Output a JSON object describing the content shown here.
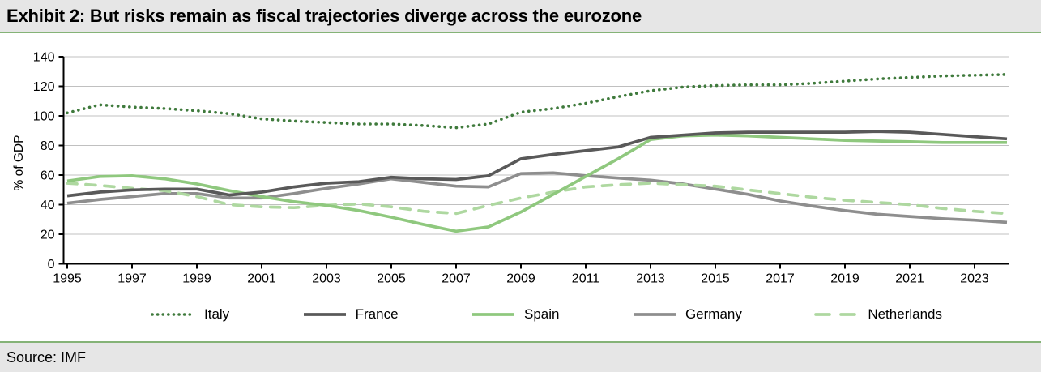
{
  "header": {
    "title": "Exhibit 2: But risks remain as fiscal trajectories diverge across the eurozone"
  },
  "footer": {
    "source": "Source: IMF"
  },
  "colors": {
    "accent_green": "#85b377",
    "panel_bg": "#e6e6e6",
    "grid": "#c0c0c0",
    "axis": "#000000"
  },
  "chart_data": {
    "type": "line",
    "title": "",
    "xlabel": "",
    "ylabel": "% of GDP",
    "ylim": [
      0,
      140
    ],
    "yticks": [
      0,
      20,
      40,
      60,
      80,
      100,
      120,
      140
    ],
    "xticks": [
      1995,
      1997,
      1999,
      2001,
      2003,
      2005,
      2007,
      2009,
      2011,
      2013,
      2015,
      2017,
      2019,
      2021,
      2023
    ],
    "grid": "horizontal",
    "legend_position": "bottom",
    "x": [
      1995,
      1996,
      1997,
      1998,
      1999,
      2000,
      2001,
      2002,
      2003,
      2004,
      2005,
      2006,
      2007,
      2008,
      2009,
      2010,
      2011,
      2012,
      2013,
      2014,
      2015,
      2016,
      2017,
      2018,
      2019,
      2020,
      2021,
      2022,
      2023,
      2024
    ],
    "series": [
      {
        "name": "Italy",
        "color": "#3f7a3c",
        "style": "dotted",
        "zorder": 5,
        "values": [
          102,
          107.5,
          106,
          105,
          103.5,
          101.5,
          98,
          96.5,
          95.5,
          94.5,
          94.5,
          93.5,
          92,
          94.5,
          102.5,
          105,
          108.5,
          113,
          117,
          119.5,
          120.5,
          121,
          121,
          122,
          123.5,
          125,
          126,
          127,
          127.5,
          128
        ]
      },
      {
        "name": "France",
        "color": "#595959",
        "style": "solid",
        "zorder": 4,
        "values": [
          46,
          48.5,
          50,
          50.5,
          50.5,
          46.5,
          48.5,
          52,
          54.5,
          55.5,
          58.5,
          57.5,
          57,
          59.5,
          71,
          74,
          76.5,
          79,
          85.5,
          87,
          88.5,
          89,
          89,
          89,
          89,
          89.5,
          89,
          87.5,
          86,
          84.5
        ]
      },
      {
        "name": "Spain",
        "color": "#8fc87e",
        "style": "solid",
        "zorder": 3,
        "values": [
          56,
          59,
          59.5,
          57.5,
          54,
          49.5,
          45.5,
          42,
          39.5,
          36,
          31.5,
          26.5,
          22,
          25,
          35,
          47,
          59,
          71,
          84,
          86.5,
          87,
          86.5,
          85.5,
          84.5,
          83.5,
          83,
          82.5,
          82,
          82,
          82
        ]
      },
      {
        "name": "Germany",
        "color": "#8e8e8e",
        "style": "solid",
        "zorder": 1,
        "values": [
          41,
          43.5,
          45.5,
          47.5,
          47.5,
          44.5,
          44.5,
          47.5,
          51,
          54,
          57.5,
          55,
          52.5,
          52,
          61,
          61.5,
          59.5,
          58,
          56.5,
          54,
          50.5,
          47,
          42.5,
          39,
          36,
          33.5,
          32,
          30.5,
          29.5,
          28
        ]
      },
      {
        "name": "Netherlands",
        "color": "#aed8a0",
        "style": "dashed",
        "zorder": 2,
        "values": [
          54.5,
          53,
          51,
          49.5,
          45.5,
          40,
          38.5,
          38,
          39.5,
          40.5,
          38.5,
          35.5,
          34,
          39.5,
          44.5,
          48.5,
          52,
          53.5,
          54.5,
          53.5,
          52.5,
          50,
          47.5,
          45,
          43,
          41.5,
          40,
          37.5,
          35.5,
          34
        ]
      }
    ]
  }
}
